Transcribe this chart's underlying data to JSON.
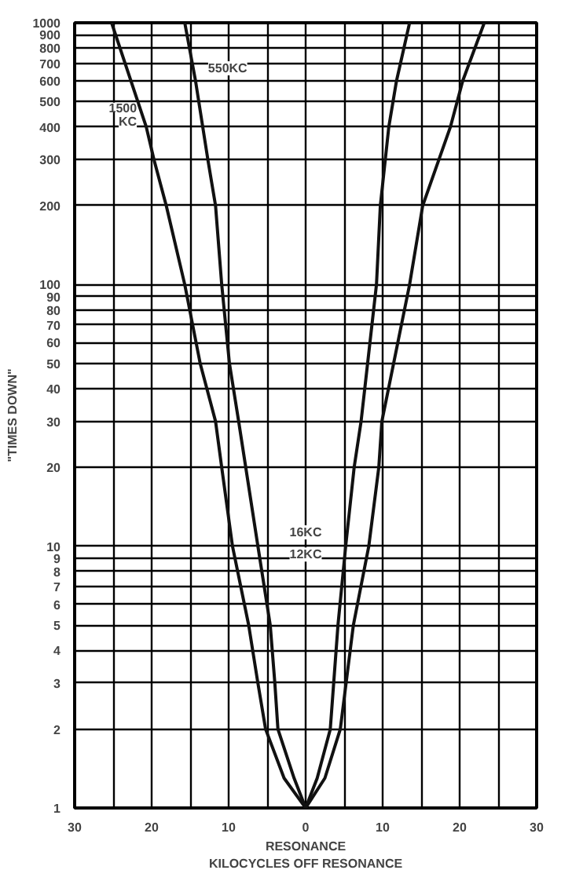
{
  "chart_data": {
    "type": "line",
    "xlabel": "KILOCYCLES OFF RESONANCE",
    "ylabel": "\"TIMES DOWN\"",
    "log": "y",
    "grid": true,
    "marker": "none",
    "line_style": "solid",
    "xlim": [
      -30,
      30
    ],
    "ylim": [
      1,
      1000
    ],
    "xticks": [
      {
        "value": -30,
        "label": "30"
      },
      {
        "value": -25,
        "label": null
      },
      {
        "value": -20,
        "label": "20"
      },
      {
        "value": -15,
        "label": null
      },
      {
        "value": -10,
        "label": "10"
      },
      {
        "value": -5,
        "label": null
      },
      0,
      {
        "value": 5,
        "label": null
      },
      {
        "value": 10,
        "label": "10"
      },
      {
        "value": 15,
        "label": null
      },
      {
        "value": 20,
        "label": "20"
      },
      {
        "value": 25,
        "label": null
      },
      {
        "value": 30,
        "label": "30"
      }
    ],
    "yticks": [
      1,
      2,
      3,
      4,
      5,
      6,
      7,
      8,
      9,
      10,
      20,
      30,
      40,
      50,
      60,
      70,
      80,
      90,
      100,
      200,
      300,
      400,
      500,
      600,
      700,
      800,
      900,
      1000
    ],
    "series": [
      {
        "name": "1500\nKC",
        "color": "#111111",
        "x": [
          -25.2,
          -20.7,
          -19.7,
          -18.1,
          -15.7,
          -13.7,
          -11.7,
          -10.9,
          -9.5,
          -7.4,
          -6.2,
          -5.2,
          -2.8,
          0,
          2.5,
          4.5,
          6.2,
          8.2,
          9.5,
          9.9,
          13.5,
          15.2,
          18.8,
          20.4,
          23.2
        ],
        "values": [
          1000,
          400,
          300,
          200,
          100,
          50,
          30,
          20,
          10,
          5,
          3,
          2,
          1.3,
          1,
          1.3,
          2,
          5,
          10,
          20,
          30,
          100,
          200,
          400,
          600,
          1000
        ]
      },
      {
        "name": "550KC",
        "color": "#111111",
        "x": [
          -15.7,
          -14.3,
          -12.7,
          -11.7,
          -10.9,
          -9.9,
          -8.7,
          -6.2,
          -4.6,
          -4.0,
          -3.6,
          -1.5,
          0,
          1.5,
          3.2,
          4.2,
          5.2,
          6.3,
          7.2,
          9.2,
          9.7,
          10.8,
          11.8,
          13.5
        ],
        "values": [
          1000,
          600,
          300,
          200,
          100,
          50,
          30,
          10,
          5,
          3,
          2,
          1.3,
          1,
          1.3,
          2,
          5,
          10,
          20,
          30,
          100,
          200,
          400,
          600,
          1000
        ]
      }
    ],
    "annotations": [
      {
        "text": "16KC",
        "x": 0,
        "y": 11.3
      },
      {
        "text": "12KC",
        "x": 0,
        "y": 9.3
      },
      "RESONANCE"
    ]
  }
}
